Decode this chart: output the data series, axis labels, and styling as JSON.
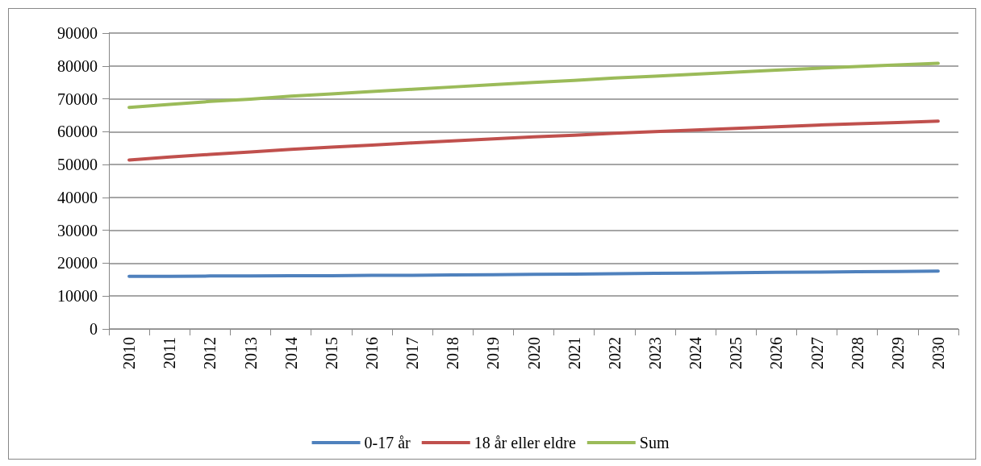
{
  "chart_data": {
    "type": "line",
    "categories": [
      "2010",
      "2011",
      "2012",
      "2013",
      "2014",
      "2015",
      "2016",
      "2017",
      "2018",
      "2019",
      "2020",
      "2021",
      "2022",
      "2023",
      "2024",
      "2025",
      "2026",
      "2027",
      "2028",
      "2029",
      "2030"
    ],
    "series": [
      {
        "name": "0-17 år",
        "color": "#4f81bd",
        "values": [
          16000,
          16000,
          16100,
          16100,
          16200,
          16200,
          16300,
          16300,
          16400,
          16500,
          16600,
          16700,
          16800,
          16900,
          17000,
          17100,
          17200,
          17300,
          17400,
          17500,
          17600
        ]
      },
      {
        "name": "18 år eller eldre",
        "color": "#c0504d",
        "values": [
          51400,
          52300,
          53100,
          53800,
          54600,
          55300,
          55900,
          56600,
          57200,
          57800,
          58400,
          58900,
          59500,
          60000,
          60500,
          61000,
          61500,
          62000,
          62400,
          62800,
          63200
        ]
      },
      {
        "name": "Sum",
        "color": "#9bbb59",
        "values": [
          67400,
          68300,
          69200,
          69900,
          70800,
          71500,
          72200,
          72900,
          73600,
          74300,
          75000,
          75600,
          76300,
          76900,
          77500,
          78100,
          78700,
          79300,
          79800,
          80300,
          80800
        ]
      }
    ],
    "ylim": [
      0,
      90000
    ],
    "yticks": [
      0,
      10000,
      20000,
      30000,
      40000,
      50000,
      60000,
      70000,
      80000,
      90000
    ],
    "grid": "y",
    "legend": "bottom",
    "marker": "none",
    "line_style": "solid"
  }
}
